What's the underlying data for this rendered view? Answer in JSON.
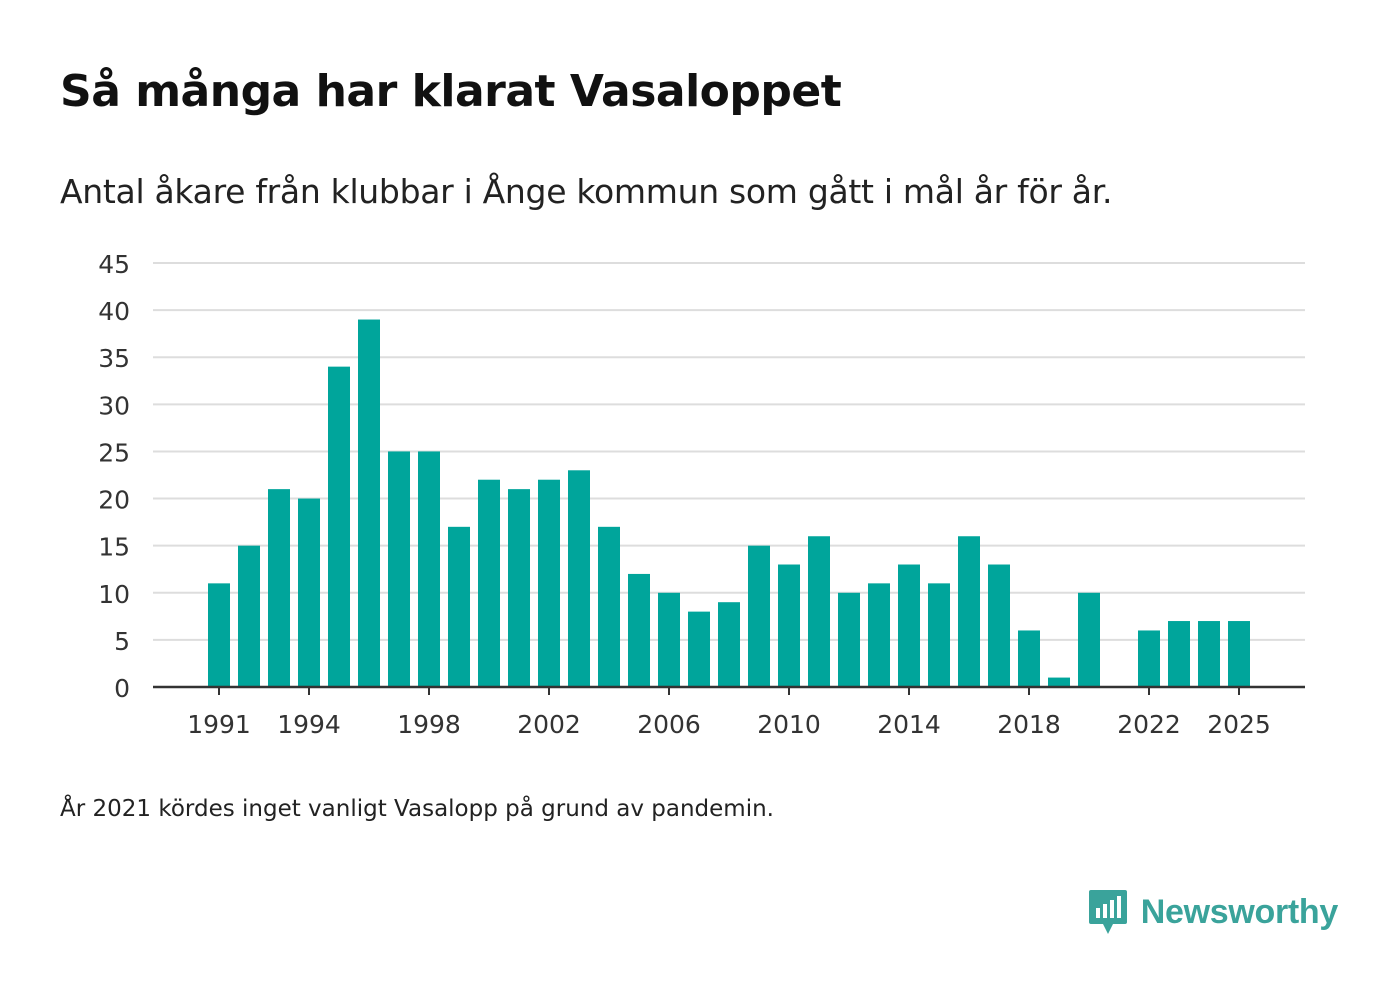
{
  "title": "Så många har klarat Vasaloppet",
  "subtitle": "Antal åkare från klubbar i Ånge kommun som gått i mål år för år.",
  "footnote": "År 2021 kördes inget vanligt Vasalopp på grund av pandemin.",
  "brand": {
    "name": "Newsworthy",
    "logo_icon": "newsworthy-logo-icon",
    "color": "#3aa39b"
  },
  "colors": {
    "bar": "#00a59b",
    "grid": "#dddddd",
    "axis": "#333333"
  },
  "chart_data": {
    "type": "bar",
    "title": "Så många har klarat Vasaloppet",
    "xlabel": "",
    "ylabel": "",
    "ylim": [
      0,
      45
    ],
    "yticks": [
      0,
      5,
      10,
      15,
      20,
      25,
      30,
      35,
      40,
      45
    ],
    "xticks": [
      "1991",
      "1994",
      "1998",
      "2002",
      "2006",
      "2010",
      "2014",
      "2018",
      "2022",
      "2025"
    ],
    "categories": [
      "1991",
      "1992",
      "1993",
      "1994",
      "1995",
      "1996",
      "1997",
      "1998",
      "1999",
      "2000",
      "2001",
      "2002",
      "2003",
      "2004",
      "2005",
      "2006",
      "2007",
      "2008",
      "2009",
      "2010",
      "2011",
      "2012",
      "2013",
      "2014",
      "2015",
      "2016",
      "2017",
      "2018",
      "2019",
      "2020",
      "2021",
      "2022",
      "2023",
      "2024",
      "2025"
    ],
    "values": [
      11,
      15,
      21,
      20,
      34,
      39,
      25,
      25,
      17,
      22,
      21,
      22,
      23,
      17,
      12,
      10,
      8,
      9,
      15,
      13,
      16,
      10,
      11,
      13,
      11,
      16,
      13,
      6,
      1,
      10,
      null,
      6,
      7,
      7,
      7
    ],
    "grid": true,
    "legend": "none"
  }
}
